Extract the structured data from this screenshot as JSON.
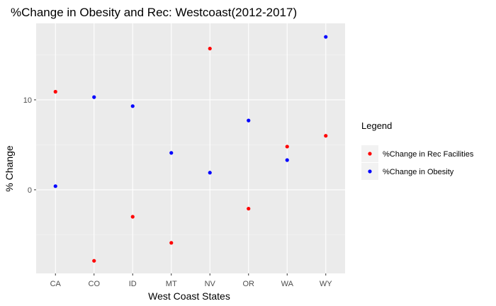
{
  "chart_data": {
    "type": "scatter",
    "title": "%Change in Obesity and Rec: Westcoast(2012-2017)",
    "xlabel": "West Coast States",
    "ylabel": "% Change",
    "categories": [
      "CA",
      "CO",
      "ID",
      "MT",
      "NV",
      "OR",
      "WA",
      "WY"
    ],
    "ylim": [
      -9.3,
      18.5
    ],
    "yticks": [
      0,
      10
    ],
    "y_tick_labels": [
      "0",
      "10"
    ],
    "grid": true,
    "legend": {
      "title": "Legend",
      "position": "right"
    },
    "series": [
      {
        "name": "%Change in Rec Facilities",
        "color": "#ff0000",
        "values": [
          10.9,
          -7.9,
          -3.0,
          -5.9,
          15.7,
          -2.1,
          4.8,
          6.0
        ]
      },
      {
        "name": "%Change in Obesity",
        "color": "#0000ff",
        "values": [
          0.4,
          10.3,
          9.3,
          4.1,
          1.9,
          7.7,
          3.3,
          17.0
        ]
      }
    ]
  }
}
